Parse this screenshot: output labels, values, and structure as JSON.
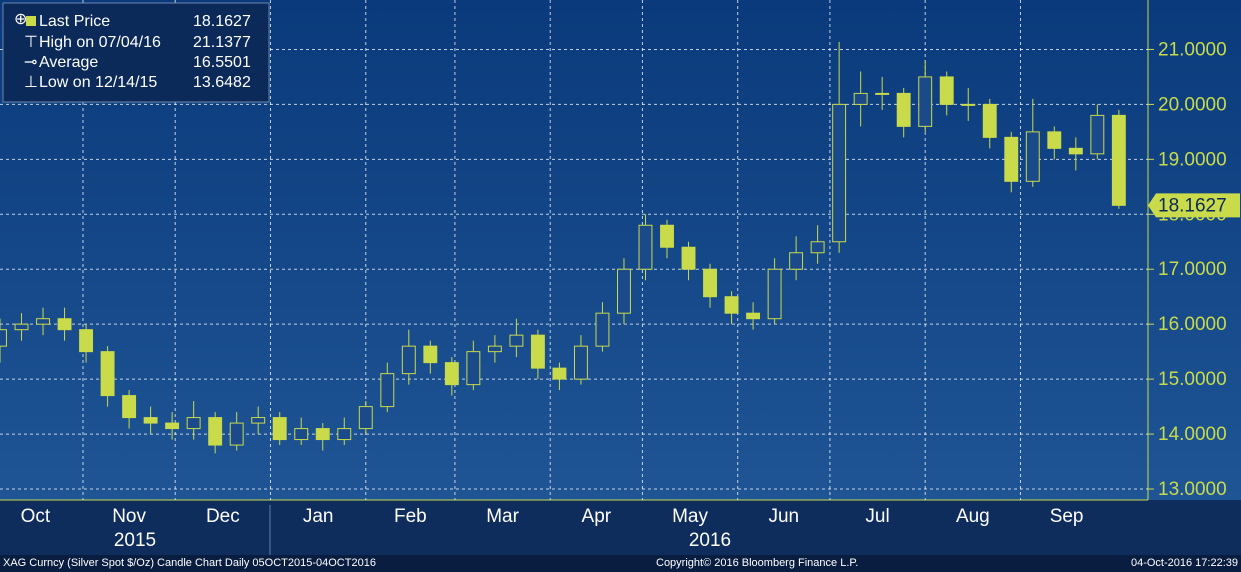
{
  "chart_data": {
    "type": "candlestick",
    "color": "#c9da4b",
    "legend": [
      {
        "label": "Last Price",
        "value": 18.1627
      },
      {
        "label": "High on 07/04/16",
        "value": 21.1377
      },
      {
        "label": "Average",
        "value": 16.5501
      },
      {
        "label": "Low on 12/14/15",
        "value": 13.6482
      }
    ],
    "x": [
      0,
      7,
      14,
      21,
      28,
      35,
      42,
      49,
      56,
      63,
      70,
      77,
      84,
      91,
      98,
      105,
      112,
      119,
      126,
      133,
      140,
      147,
      154,
      161,
      168,
      175,
      182,
      189,
      196,
      203,
      210,
      217,
      224,
      231,
      238,
      245,
      252,
      259,
      266,
      273,
      280,
      287,
      294,
      301,
      308,
      315,
      322,
      329,
      336,
      343,
      350,
      357,
      364
    ],
    "open": [
      15.6,
      15.9,
      16.0,
      16.1,
      15.9,
      15.5,
      14.7,
      14.3,
      14.2,
      14.1,
      14.3,
      13.8,
      14.2,
      14.3,
      13.9,
      14.1,
      13.9,
      14.1,
      14.5,
      15.1,
      15.6,
      15.3,
      14.9,
      15.5,
      15.6,
      15.8,
      15.2,
      15.0,
      15.6,
      16.2,
      17.0,
      17.8,
      17.4,
      17.0,
      16.5,
      16.2,
      16.1,
      17.0,
      17.3,
      17.5,
      20.0,
      20.2,
      20.2,
      19.6,
      20.5,
      20.0,
      20.0,
      19.4,
      18.6,
      19.5,
      19.2,
      19.1,
      19.8
    ],
    "high": [
      16.1,
      16.2,
      16.3,
      16.3,
      16.0,
      15.6,
      14.8,
      14.5,
      14.4,
      14.6,
      14.4,
      14.4,
      14.5,
      14.4,
      14.3,
      14.2,
      14.3,
      14.6,
      15.3,
      15.9,
      15.7,
      15.4,
      15.7,
      15.8,
      16.1,
      15.9,
      15.3,
      15.8,
      16.4,
      17.2,
      18.0,
      17.9,
      17.5,
      17.1,
      16.6,
      16.4,
      17.2,
      17.6,
      17.8,
      21.1377,
      20.6,
      20.5,
      20.3,
      20.8,
      20.6,
      20.3,
      20.1,
      19.5,
      20.1,
      19.6,
      19.4,
      20.0,
      19.9
    ],
    "low": [
      15.3,
      15.7,
      15.8,
      15.7,
      15.3,
      14.5,
      14.1,
      14.0,
      13.9,
      13.9,
      13.6482,
      13.7,
      14.0,
      13.8,
      13.8,
      13.7,
      13.8,
      14.0,
      14.4,
      14.9,
      15.1,
      14.7,
      14.8,
      15.3,
      15.4,
      15.0,
      14.8,
      14.9,
      15.5,
      16.0,
      16.8,
      17.2,
      16.8,
      16.3,
      16.0,
      15.9,
      16.0,
      16.8,
      17.1,
      17.3,
      19.6,
      19.9,
      19.4,
      19.5,
      19.8,
      19.7,
      19.2,
      18.4,
      18.5,
      19.0,
      18.8,
      19.0,
      18.1
    ],
    "close": [
      15.9,
      16.0,
      16.1,
      15.9,
      15.5,
      14.7,
      14.3,
      14.2,
      14.1,
      14.3,
      13.8,
      14.2,
      14.3,
      13.9,
      14.1,
      13.9,
      14.1,
      14.5,
      15.1,
      15.6,
      15.3,
      14.9,
      15.5,
      15.6,
      15.8,
      15.2,
      15.0,
      15.6,
      16.2,
      17.0,
      17.8,
      17.4,
      17.0,
      16.5,
      16.2,
      16.1,
      17.0,
      17.3,
      17.5,
      20.0,
      20.2,
      20.2,
      19.6,
      20.5,
      20.0,
      20.0,
      19.4,
      18.6,
      19.5,
      19.2,
      19.1,
      19.8,
      18.1627
    ],
    "xlim": [
      0,
      366
    ],
    "xticks": [
      {
        "value": -4,
        "label": "Oct"
      },
      {
        "value": 27,
        "label": "Nov"
      },
      {
        "value": 57,
        "label": "Dec"
      },
      {
        "value": 88,
        "label": "Jan"
      },
      {
        "value": 119,
        "label": "Feb"
      },
      {
        "value": 148,
        "label": "Mar"
      },
      {
        "value": 179,
        "label": "Apr"
      },
      {
        "value": 209,
        "label": "May"
      },
      {
        "value": 240,
        "label": "Jun"
      },
      {
        "value": 270,
        "label": "Jul"
      },
      {
        "value": 301,
        "label": "Aug"
      },
      {
        "value": 332,
        "label": "Sep"
      }
    ],
    "ylim": [
      12.8,
      21.9
    ],
    "yticks": [
      {
        "value": 13,
        "label": "13.0000"
      },
      {
        "value": 14,
        "label": "14.0000"
      },
      {
        "value": 15,
        "label": "15.0000"
      },
      {
        "value": 16,
        "label": "16.0000"
      },
      {
        "value": 17,
        "label": "17.0000"
      },
      {
        "value": 18,
        "label": "18.0000"
      },
      {
        "value": 19,
        "label": "19.0000"
      },
      {
        "value": 20,
        "label": "20.0000"
      },
      {
        "value": 21,
        "label": "21.0000"
      }
    ],
    "grid": true,
    "years": [
      "2015",
      "2016"
    ],
    "footer": {
      "description": "XAG Curncy (Silver Spot  $/Oz) Candle Chart  Daily 05OCT2015-04OCT2016",
      "copyright": "Copyright© 2016 Bloomberg Finance L.P.",
      "timestamp": "04-Oct-2016 17:22:39"
    }
  }
}
